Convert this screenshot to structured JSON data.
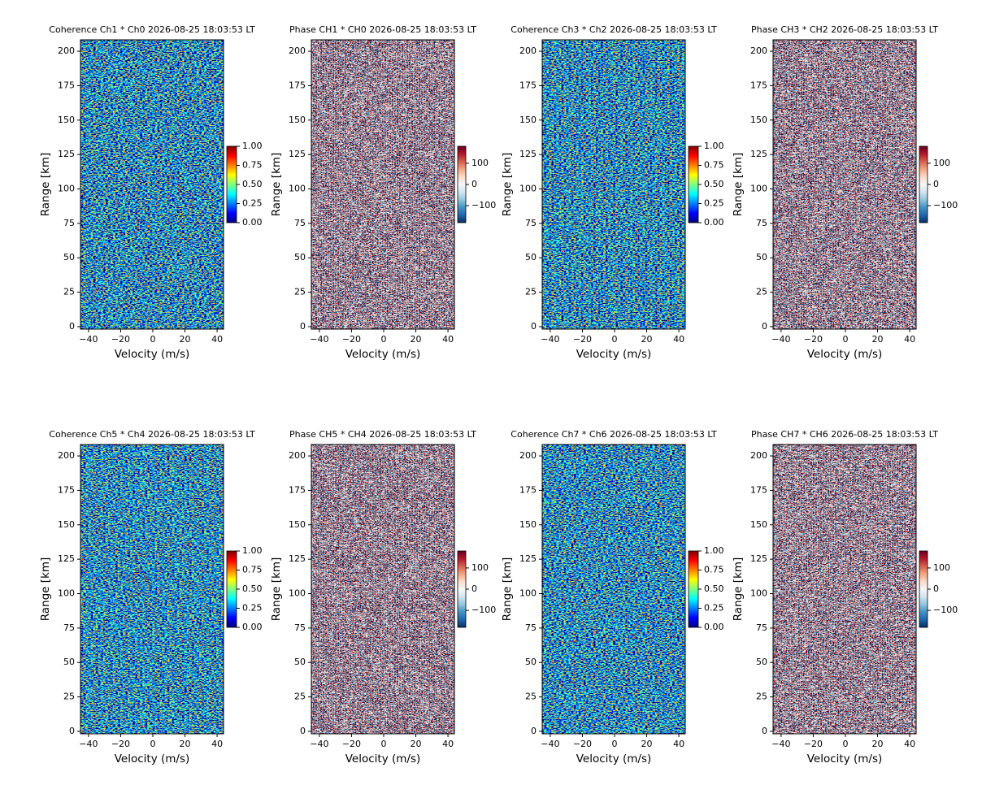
{
  "chart_data": [
    {
      "type": "heatmap",
      "title": "Coherence Ch1 * Ch0 2026-08-25 18:03:53 LT",
      "x_label": "Velocity (m/s)",
      "y_label": "Range [km]",
      "xlim": [
        -45,
        44
      ],
      "xticks": [
        {
          "value": -40,
          "label": "−40"
        },
        {
          "value": -20,
          "label": "−20"
        },
        0,
        20,
        40
      ],
      "ylim": [
        -1.8,
        208.3
      ],
      "yticks": [
        0,
        25,
        50,
        75,
        100,
        125,
        150,
        175,
        200
      ],
      "colorbar": {
        "clim": [
          0,
          1
        ],
        "ticks": [
          {
            "value": 0,
            "label": "0.00"
          },
          {
            "value": 0.25,
            "label": "0.25"
          },
          {
            "value": 0.5,
            "label": "0.50"
          },
          {
            "value": 0.75,
            "label": "0.75"
          },
          {
            "value": 1,
            "label": "1.00"
          }
        ],
        "colormap": [
          "#00007f",
          "#0000ff",
          "#007fff",
          "#00ffff",
          "#7fff7f",
          "#ffff00",
          "#ff7f00",
          "#ff0000",
          "#7f0000"
        ]
      }
    },
    {
      "type": "heatmap",
      "title": "Phase CH1 * CH0 2026-08-25 18:03:53 LT",
      "x_label": "Velocity (m/s)",
      "y_label": "Range [km]",
      "xlim": [
        -45,
        44
      ],
      "xticks": [
        {
          "value": -40,
          "label": "−40"
        },
        {
          "value": -20,
          "label": "−20"
        },
        0,
        20,
        40
      ],
      "ylim": [
        -1.8,
        208.3
      ],
      "yticks": [
        0,
        25,
        50,
        75,
        100,
        125,
        150,
        175,
        200
      ],
      "colorbar": {
        "clim": [
          -180,
          180
        ],
        "ticks": [
          {
            "value": -100,
            "label": "−100"
          },
          0,
          100
        ],
        "colormap": [
          "#053061",
          "#2166ac",
          "#4393c3",
          "#92c5de",
          "#d1e5f0",
          "#f7f7f7",
          "#fddbc7",
          "#f4a582",
          "#d6604d",
          "#b2182b",
          "#67001f"
        ]
      }
    },
    {
      "type": "heatmap",
      "title": "Coherence Ch3 * Ch2 2026-08-25 18:03:53 LT",
      "x_label": "Velocity (m/s)",
      "y_label": "Range [km]",
      "xlim": [
        -45,
        44
      ],
      "xticks": [
        {
          "value": -40,
          "label": "−40"
        },
        {
          "value": -20,
          "label": "−20"
        },
        0,
        20,
        40
      ],
      "ylim": [
        -1.8,
        208.3
      ],
      "yticks": [
        0,
        25,
        50,
        75,
        100,
        125,
        150,
        175,
        200
      ],
      "colorbar": {
        "clim": [
          0,
          1
        ],
        "ticks": [
          {
            "value": 0,
            "label": "0.00"
          },
          {
            "value": 0.25,
            "label": "0.25"
          },
          {
            "value": 0.5,
            "label": "0.50"
          },
          {
            "value": 0.75,
            "label": "0.75"
          },
          {
            "value": 1,
            "label": "1.00"
          }
        ],
        "colormap": [
          "#00007f",
          "#0000ff",
          "#007fff",
          "#00ffff",
          "#7fff7f",
          "#ffff00",
          "#ff7f00",
          "#ff0000",
          "#7f0000"
        ]
      }
    },
    {
      "type": "heatmap",
      "title": "Phase CH3 * CH2 2026-08-25 18:03:53 LT",
      "x_label": "Velocity (m/s)",
      "y_label": "Range [km]",
      "xlim": [
        -45,
        44
      ],
      "xticks": [
        {
          "value": -40,
          "label": "−40"
        },
        {
          "value": -20,
          "label": "−20"
        },
        0,
        20,
        40
      ],
      "ylim": [
        -1.8,
        208.3
      ],
      "yticks": [
        0,
        25,
        50,
        75,
        100,
        125,
        150,
        175,
        200
      ],
      "colorbar": {
        "clim": [
          -180,
          180
        ],
        "ticks": [
          {
            "value": -100,
            "label": "−100"
          },
          0,
          100
        ],
        "colormap": [
          "#053061",
          "#2166ac",
          "#4393c3",
          "#92c5de",
          "#d1e5f0",
          "#f7f7f7",
          "#fddbc7",
          "#f4a582",
          "#d6604d",
          "#b2182b",
          "#67001f"
        ]
      }
    },
    {
      "type": "heatmap",
      "title": "Coherence Ch5 * Ch4 2026-08-25 18:03:53 LT",
      "x_label": "Velocity (m/s)",
      "y_label": "Range [km]",
      "xlim": [
        -45,
        44
      ],
      "xticks": [
        {
          "value": -40,
          "label": "−40"
        },
        {
          "value": -20,
          "label": "−20"
        },
        0,
        20,
        40
      ],
      "ylim": [
        -1.8,
        208.3
      ],
      "yticks": [
        0,
        25,
        50,
        75,
        100,
        125,
        150,
        175,
        200
      ],
      "colorbar": {
        "clim": [
          0,
          1
        ],
        "ticks": [
          {
            "value": 0,
            "label": "0.00"
          },
          {
            "value": 0.25,
            "label": "0.25"
          },
          {
            "value": 0.5,
            "label": "0.50"
          },
          {
            "value": 0.75,
            "label": "0.75"
          },
          {
            "value": 1,
            "label": "1.00"
          }
        ],
        "colormap": [
          "#00007f",
          "#0000ff",
          "#007fff",
          "#00ffff",
          "#7fff7f",
          "#ffff00",
          "#ff7f00",
          "#ff0000",
          "#7f0000"
        ]
      }
    },
    {
      "type": "heatmap",
      "title": "Phase CH5 * CH4 2026-08-25 18:03:53 LT",
      "x_label": "Velocity (m/s)",
      "y_label": "Range [km]",
      "xlim": [
        -45,
        44
      ],
      "xticks": [
        {
          "value": -40,
          "label": "−40"
        },
        {
          "value": -20,
          "label": "−20"
        },
        0,
        20,
        40
      ],
      "ylim": [
        -1.8,
        208.3
      ],
      "yticks": [
        0,
        25,
        50,
        75,
        100,
        125,
        150,
        175,
        200
      ],
      "colorbar": {
        "clim": [
          -180,
          180
        ],
        "ticks": [
          {
            "value": -100,
            "label": "−100"
          },
          0,
          100
        ],
        "colormap": [
          "#053061",
          "#2166ac",
          "#4393c3",
          "#92c5de",
          "#d1e5f0",
          "#f7f7f7",
          "#fddbc7",
          "#f4a582",
          "#d6604d",
          "#b2182b",
          "#67001f"
        ]
      }
    },
    {
      "type": "heatmap",
      "title": "Coherence Ch7 * Ch6 2026-08-25 18:03:53 LT",
      "x_label": "Velocity (m/s)",
      "y_label": "Range [km]",
      "xlim": [
        -45,
        44
      ],
      "xticks": [
        {
          "value": -40,
          "label": "−40"
        },
        {
          "value": -20,
          "label": "−20"
        },
        0,
        20,
        40
      ],
      "ylim": [
        -1.8,
        208.3
      ],
      "yticks": [
        0,
        25,
        50,
        75,
        100,
        125,
        150,
        175,
        200
      ],
      "colorbar": {
        "clim": [
          0,
          1
        ],
        "ticks": [
          {
            "value": 0,
            "label": "0.00"
          },
          {
            "value": 0.25,
            "label": "0.25"
          },
          {
            "value": 0.5,
            "label": "0.50"
          },
          {
            "value": 0.75,
            "label": "0.75"
          },
          {
            "value": 1,
            "label": "1.00"
          }
        ],
        "colormap": [
          "#00007f",
          "#0000ff",
          "#007fff",
          "#00ffff",
          "#7fff7f",
          "#ffff00",
          "#ff7f00",
          "#ff0000",
          "#7f0000"
        ]
      }
    },
    {
      "type": "heatmap",
      "title": "Phase CH7 * CH6 2026-08-25 18:03:53 LT",
      "x_label": "Velocity (m/s)",
      "y_label": "Range [km]",
      "xlim": [
        -45,
        44
      ],
      "xticks": [
        {
          "value": -40,
          "label": "−40"
        },
        {
          "value": -20,
          "label": "−20"
        },
        0,
        20,
        40
      ],
      "ylim": [
        -1.8,
        208.3
      ],
      "yticks": [
        0,
        25,
        50,
        75,
        100,
        125,
        150,
        175,
        200
      ],
      "colorbar": {
        "clim": [
          -180,
          180
        ],
        "ticks": [
          {
            "value": -100,
            "label": "−100"
          },
          0,
          100
        ],
        "colormap": [
          "#053061",
          "#2166ac",
          "#4393c3",
          "#92c5de",
          "#d1e5f0",
          "#f7f7f7",
          "#fddbc7",
          "#f4a582",
          "#d6604d",
          "#b2182b",
          "#67001f"
        ]
      }
    }
  ]
}
